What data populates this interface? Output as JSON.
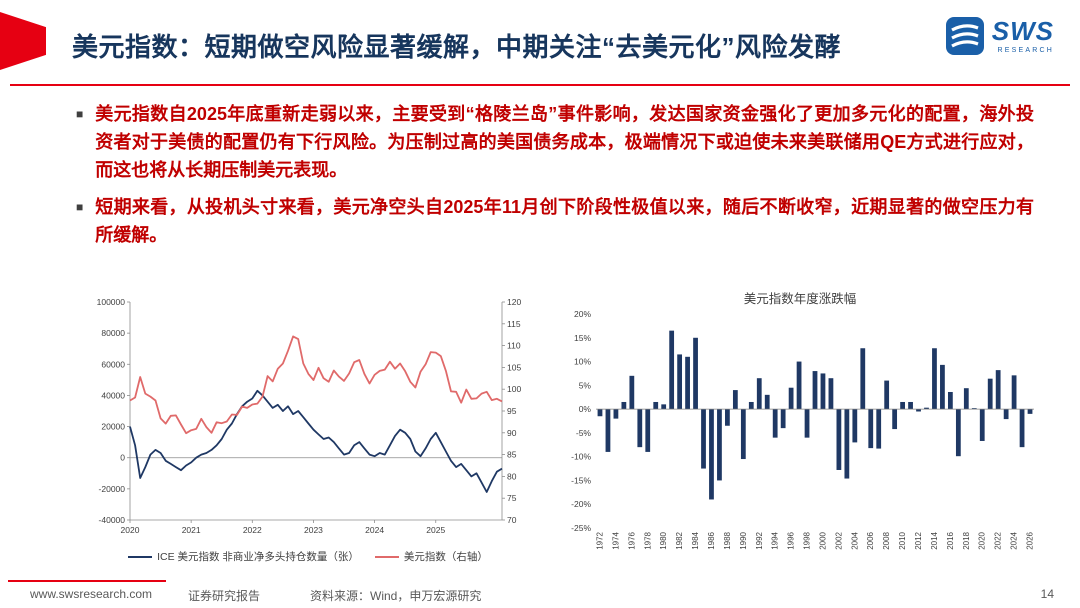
{
  "header": {
    "title": "美元指数：短期做空风险显著缓解，中期关注“去美元化”风险发酵",
    "logo_text": "SWS",
    "logo_subtext": "RESEARCH"
  },
  "bullets": [
    "美元指数自2025年底重新走弱以来，主要受到“格陵兰岛”事件影响，发达国家资金强化了更加多元化的配置，海外投资者对于美债的配置仍有下行风险。为压制过高的美国债务成本，极端情况下或迫使未来美联储用QE方式进行应对，而这也将从长期压制美元表现。",
    "短期来看，从投机头寸来看，美元净空头自2025年11月创下阶段性极值以来，随后不断收窄，近期显著的做空压力有所缓解。"
  ],
  "footer": {
    "website": "www.swsresearch.com",
    "report_type": "证券研究报告",
    "source": "资料来源：Wind，申万宏源研究",
    "page": "14"
  },
  "colors": {
    "accent_red": "#e60012",
    "title_navy": "#17365d",
    "bullet_red": "#c00000",
    "line_navy": "#1f3864",
    "line_red": "#e06a6a",
    "bar_navy": "#1f3864"
  },
  "chart_data": [
    {
      "type": "line",
      "title": "",
      "x_tick_labels": [
        "2020",
        "2021",
        "2022",
        "2023",
        "2024",
        "2025"
      ],
      "points_per_year": 12,
      "left_axis": {
        "min": -40000,
        "max": 100000,
        "tick_step": 20000,
        "tick_labels": [
          "-40000",
          "-20000",
          "0",
          "20000",
          "40000",
          "60000",
          "80000",
          "100000"
        ]
      },
      "right_axis": {
        "min": 70,
        "max": 120,
        "tick_labels": [
          "70",
          "75",
          "80",
          "85",
          "90",
          "95",
          "100",
          "105",
          "110",
          "115",
          "120"
        ]
      },
      "legend_position": "bottom",
      "series": [
        {
          "name": "ICE 美元指数 非商业净多头持仓数量（张）",
          "axis": "left",
          "color": "#1f3864",
          "values": [
            20000,
            8000,
            -13000,
            -6000,
            2000,
            5000,
            3000,
            -2000,
            -4000,
            -6000,
            -8000,
            -5000,
            -3000,
            0,
            2000,
            3000,
            5000,
            8000,
            12000,
            18000,
            22000,
            28000,
            33000,
            36000,
            38000,
            43000,
            40000,
            36000,
            32000,
            34000,
            30000,
            33000,
            28000,
            30000,
            26000,
            22000,
            18000,
            15000,
            12000,
            13000,
            10000,
            6000,
            2000,
            3000,
            8000,
            10000,
            6000,
            2000,
            1000,
            3000,
            2000,
            8000,
            14000,
            18000,
            16000,
            12000,
            4000,
            1000,
            6000,
            12000,
            16000,
            10000,
            4000,
            -2000,
            -6000,
            -4000,
            -8000,
            -12000,
            -10000,
            -16000,
            -22000,
            -15000,
            -9000,
            -7000
          ]
        },
        {
          "name": "美元指数（右轴）",
          "axis": "right",
          "color": "#e06a6a",
          "values": [
            97.4,
            98.1,
            102.8,
            99.0,
            98.3,
            97.4,
            93.3,
            92.1,
            93.9,
            94.0,
            91.9,
            89.9,
            90.6,
            90.9,
            93.2,
            91.3,
            90.0,
            92.4,
            92.2,
            92.6,
            94.2,
            94.1,
            96.0,
            95.7,
            96.5,
            96.7,
            98.3,
            103.0,
            101.8,
            104.7,
            105.9,
            108.8,
            112.1,
            111.5,
            105.9,
            103.5,
            102.1,
            104.9,
            102.5,
            101.7,
            104.3,
            102.9,
            101.9,
            103.6,
            106.2,
            106.7,
            103.5,
            101.3,
            103.3,
            104.2,
            104.5,
            106.3,
            104.7,
            105.9,
            104.1,
            101.7,
            100.4,
            104.0,
            105.7,
            108.5,
            108.4,
            107.6,
            104.2,
            99.5,
            99.4,
            96.9,
            99.9,
            97.8,
            97.9,
            99.0,
            99.4,
            97.5,
            97.8,
            97.2
          ]
        }
      ]
    },
    {
      "type": "bar",
      "title": "美元指数年度涨跌幅",
      "ylim": [
        -25,
        20
      ],
      "y_ticks": [
        "20%",
        "15%",
        "10%",
        "5%",
        "0%",
        "-5%",
        "-10%",
        "-15%",
        "-20%",
        "-25%"
      ],
      "x_label_every": 2,
      "bar_color": "#1f3864",
      "categories": [
        1972,
        1973,
        1974,
        1975,
        1976,
        1977,
        1978,
        1979,
        1980,
        1981,
        1982,
        1983,
        1984,
        1985,
        1986,
        1987,
        1988,
        1989,
        1990,
        1991,
        1992,
        1993,
        1994,
        1995,
        1996,
        1997,
        1998,
        1999,
        2000,
        2001,
        2002,
        2003,
        2004,
        2005,
        2006,
        2007,
        2008,
        2009,
        2010,
        2011,
        2012,
        2013,
        2014,
        2015,
        2016,
        2017,
        2018,
        2019,
        2020,
        2021,
        2022,
        2023,
        2024,
        2025,
        2026
      ],
      "values": [
        -1.5,
        -9.0,
        -2.0,
        1.5,
        7.0,
        -8.0,
        -9.0,
        1.5,
        1.0,
        16.5,
        11.5,
        11.0,
        15.0,
        -12.5,
        -19.0,
        -15.0,
        -3.5,
        4.0,
        -10.5,
        1.5,
        6.5,
        3.0,
        -6.0,
        -4.0,
        4.5,
        10.0,
        -6.0,
        8.0,
        7.5,
        6.5,
        -12.8,
        -14.6,
        -7.0,
        12.8,
        -8.2,
        -8.3,
        6.0,
        -4.2,
        1.5,
        1.5,
        -0.5,
        0.3,
        12.8,
        9.3,
        3.6,
        -9.9,
        4.4,
        0.2,
        -6.7,
        6.4,
        8.2,
        -2.1,
        7.1,
        -8.0,
        -1.0
      ]
    }
  ]
}
